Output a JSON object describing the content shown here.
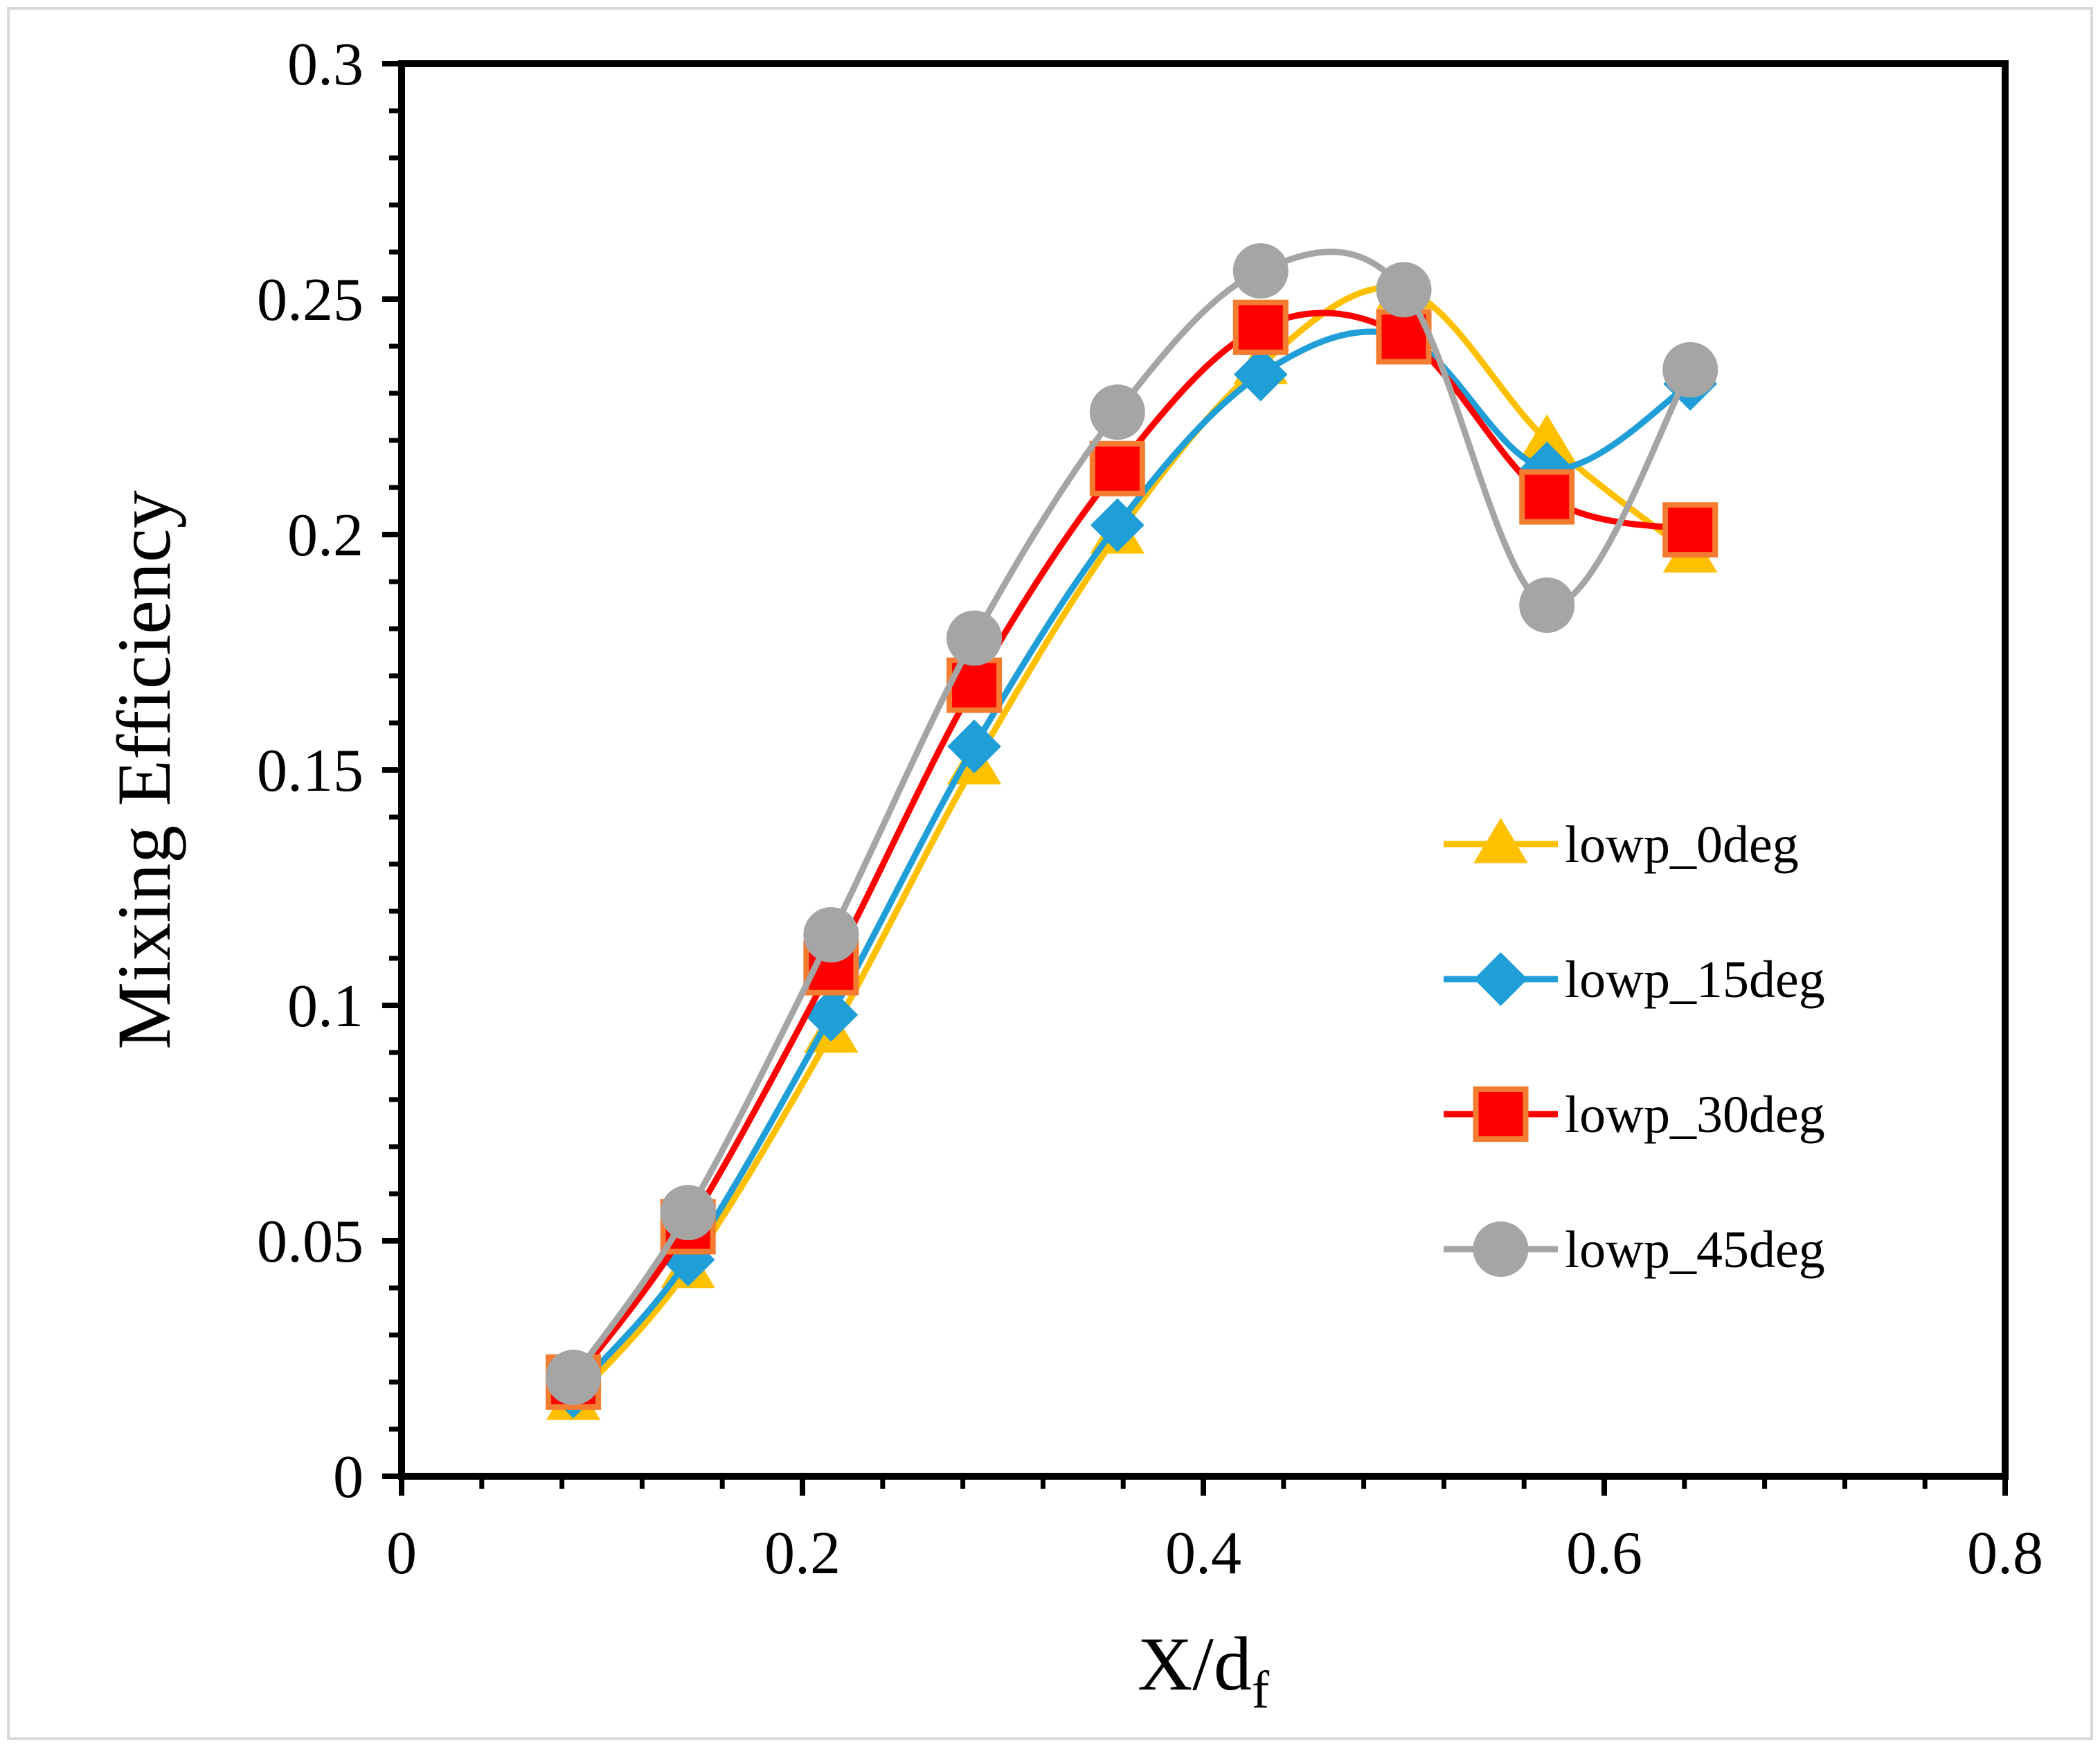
{
  "chart_data": {
    "type": "line",
    "title": "",
    "xlabel": "X/d",
    "xlabel_subscript": "f",
    "ylabel": "Mixing Efficiency",
    "xlim": [
      0,
      0.8
    ],
    "ylim": [
      0,
      0.3
    ],
    "x_ticks": [
      0,
      0.2,
      0.4,
      0.6,
      0.8
    ],
    "x_tick_labels": [
      "0",
      "0.2",
      "0.4",
      "0.6",
      "0.8"
    ],
    "x_minor_step": 0.04,
    "y_ticks": [
      0,
      0.05,
      0.1,
      0.15,
      0.2,
      0.25,
      0.3
    ],
    "y_tick_labels": [
      "0",
      "0.05",
      "0.1",
      "0.15",
      "0.2",
      "0.25",
      "0.3"
    ],
    "y_minor_step": 0.01,
    "grid": false,
    "legend_position": "right-middle",
    "x": [
      0.0857,
      0.1429,
      0.2143,
      0.2857,
      0.3571,
      0.4286,
      0.5,
      0.5714,
      0.6429
    ],
    "series": [
      {
        "name": "lowp_0deg",
        "color": "#FFC000",
        "marker": "triangle",
        "values": [
          0.016,
          0.044,
          0.094,
          0.151,
          0.2,
          0.236,
          0.252,
          0.22,
          0.196
        ]
      },
      {
        "name": "lowp_15deg",
        "color": "#1F9ED8",
        "marker": "diamond",
        "values": [
          0.018,
          0.046,
          0.098,
          0.155,
          0.202,
          0.234,
          0.242,
          0.214,
          0.232
        ]
      },
      {
        "name": "lowp_30deg",
        "color": "#FF0000",
        "marker_edge_color": "#F47C30",
        "marker": "square",
        "values": [
          0.02,
          0.053,
          0.108,
          0.168,
          0.214,
          0.244,
          0.242,
          0.208,
          0.201
        ]
      },
      {
        "name": "lowp_45deg",
        "color": "#A5A5A5",
        "marker": "circle",
        "values": [
          0.021,
          0.056,
          0.115,
          0.178,
          0.226,
          0.256,
          0.252,
          0.185,
          0.235
        ]
      }
    ]
  }
}
